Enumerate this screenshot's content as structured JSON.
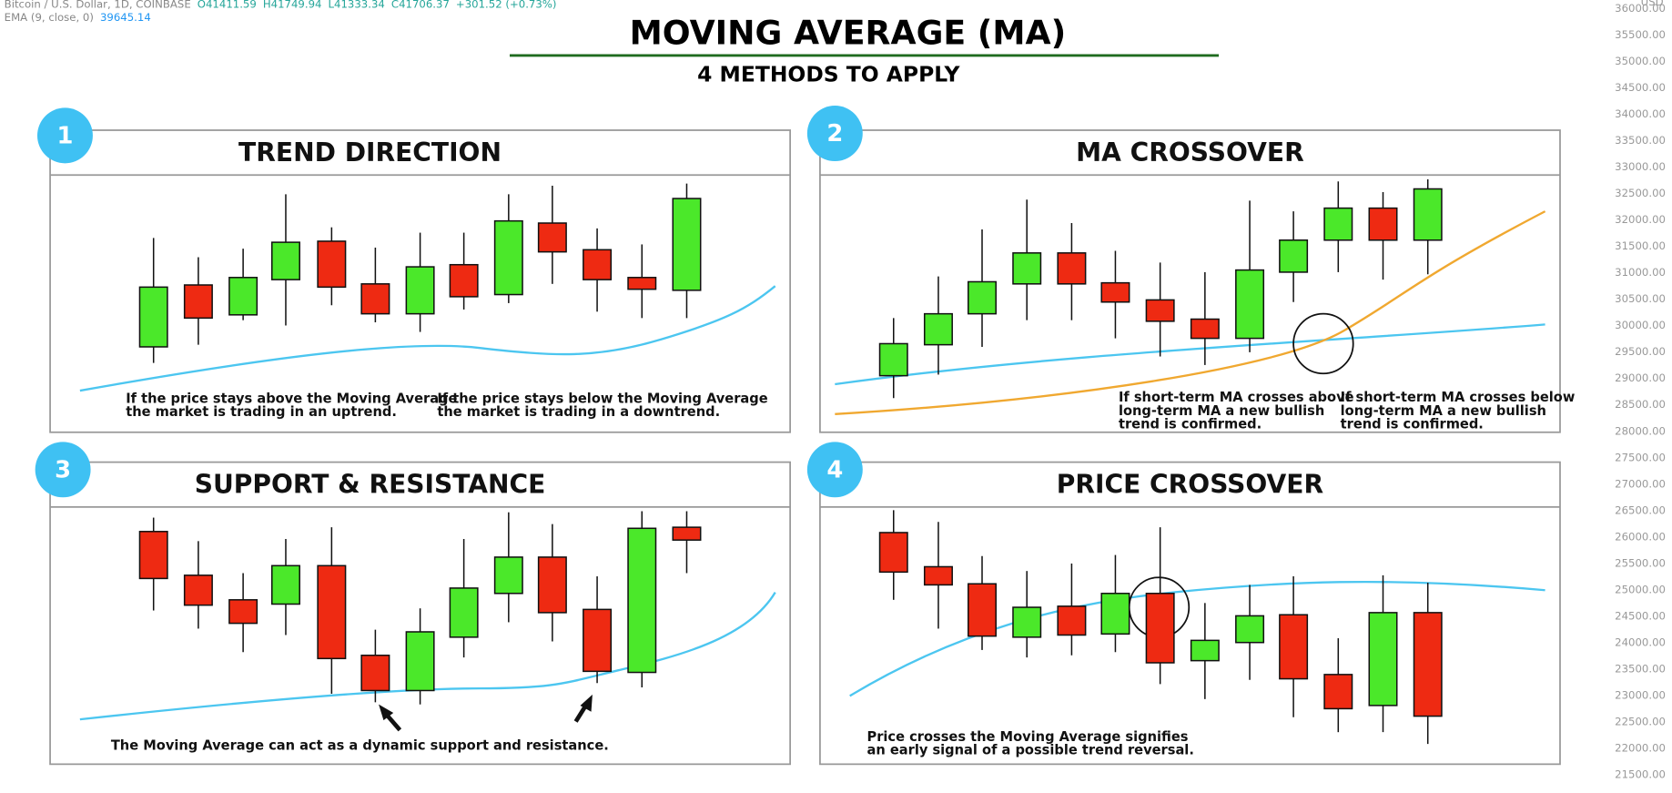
{
  "header": {
    "symbol": "Bitcoin / U.S. Dollar, 1D, COINBASE",
    "ohlc": [
      "O41411.59",
      "H41749.94",
      "L41333.34",
      "C41706.37",
      "+301.52 (+0.73%)"
    ],
    "indicator": "EMA (9, close, 0)",
    "indicator_value": "39645.14"
  },
  "price_axis": {
    "currency": "USD",
    "labels": [
      "36000.00",
      "35500.00",
      "35000.00",
      "34500.00",
      "34000.00",
      "33500.00",
      "33000.00",
      "32500.00",
      "32000.00",
      "31500.00",
      "31000.00",
      "30500.00",
      "30000.00",
      "29500.00",
      "29000.00",
      "28500.00",
      "28000.00",
      "27500.00",
      "27000.00",
      "26500.00",
      "26000.00",
      "25500.00",
      "25000.00",
      "24500.00",
      "24000.00",
      "23500.00",
      "23000.00",
      "22500.00",
      "22000.00",
      "21500.00"
    ]
  },
  "title": "MOVING AVERAGE (MA)",
  "subtitle": "4 METHODS TO APPLY",
  "panels": [
    {
      "number": "1",
      "title": "TREND DIRECTION",
      "notes": [
        [
          "If the price stays above the Moving Average",
          "the market is trading in an uptrend."
        ],
        [
          "If the price stays below the Moving Average",
          "the market is trading in a downtrend."
        ]
      ]
    },
    {
      "number": "2",
      "title": "MA CROSSOVER",
      "notes": [
        [
          "If short-term MA crosses above",
          "long-term MA  a new bullish",
          "trend is confirmed."
        ],
        [
          "If short-term MA crosses below",
          "long-term MA a new bullish",
          "trend is confirmed."
        ]
      ]
    },
    {
      "number": "3",
      "title": "SUPPORT & RESISTANCE",
      "notes": [
        [
          "The Moving Average can act as a dynamic support and resistance."
        ]
      ]
    },
    {
      "number": "4",
      "title": "PRICE CROSSOVER",
      "notes": [
        [
          "Price crosses the Moving Average signifies",
          "an early signal of a possible trend reversal."
        ]
      ]
    }
  ]
}
